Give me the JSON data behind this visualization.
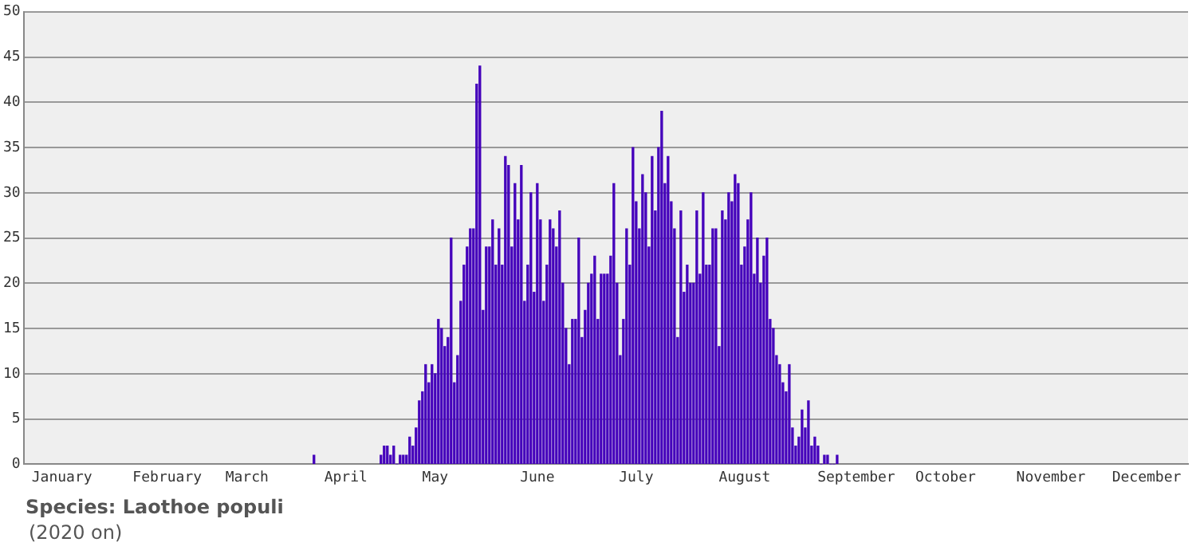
{
  "chart_data": {
    "type": "bar",
    "title": "Species: Laothoe populi",
    "subtitle": "(2020 on)",
    "x": [
      "2020-04-01",
      "2020-04-22",
      "2020-04-23",
      "2020-04-24",
      "2020-04-25",
      "2020-04-26",
      "2020-04-27",
      "2020-04-28",
      "2020-04-29",
      "2020-04-30",
      "2020-05-01",
      "2020-05-02",
      "2020-05-03",
      "2020-05-04",
      "2020-05-05",
      "2020-05-06",
      "2020-05-07",
      "2020-05-08",
      "2020-05-09",
      "2020-05-10",
      "2020-05-11",
      "2020-05-12",
      "2020-05-13",
      "2020-05-14",
      "2020-05-15",
      "2020-05-16",
      "2020-05-17",
      "2020-05-18",
      "2020-05-19",
      "2020-05-20",
      "2020-05-21",
      "2020-05-22",
      "2020-05-23",
      "2020-05-24",
      "2020-05-25",
      "2020-05-26",
      "2020-05-27",
      "2020-05-28",
      "2020-05-29",
      "2020-05-30",
      "2020-05-31",
      "2020-06-01",
      "2020-06-02",
      "2020-06-03",
      "2020-06-04",
      "2020-06-05",
      "2020-06-06",
      "2020-06-07",
      "2020-06-08",
      "2020-06-09",
      "2020-06-10",
      "2020-06-11",
      "2020-06-12",
      "2020-06-13",
      "2020-06-14",
      "2020-06-15",
      "2020-06-16",
      "2020-06-17",
      "2020-06-18",
      "2020-06-19",
      "2020-06-20",
      "2020-06-21",
      "2020-06-22",
      "2020-06-23",
      "2020-06-24",
      "2020-06-25",
      "2020-06-26",
      "2020-06-27",
      "2020-06-28",
      "2020-06-29",
      "2020-06-30",
      "2020-07-01",
      "2020-07-02",
      "2020-07-03",
      "2020-07-04",
      "2020-07-05",
      "2020-07-06",
      "2020-07-07",
      "2020-07-08",
      "2020-07-09",
      "2020-07-10",
      "2020-07-11",
      "2020-07-12",
      "2020-07-13",
      "2020-07-14",
      "2020-07-15",
      "2020-07-16",
      "2020-07-17",
      "2020-07-18",
      "2020-07-19",
      "2020-07-20",
      "2020-07-21",
      "2020-07-22",
      "2020-07-23",
      "2020-07-24",
      "2020-07-25",
      "2020-07-26",
      "2020-07-27",
      "2020-07-28",
      "2020-07-29",
      "2020-07-30",
      "2020-07-31",
      "2020-08-01",
      "2020-08-02",
      "2020-08-03",
      "2020-08-04",
      "2020-08-05",
      "2020-08-06",
      "2020-08-07",
      "2020-08-08",
      "2020-08-09",
      "2020-08-10",
      "2020-08-11",
      "2020-08-12",
      "2020-08-13",
      "2020-08-14",
      "2020-08-15",
      "2020-08-16",
      "2020-08-17",
      "2020-08-18",
      "2020-08-19",
      "2020-08-20",
      "2020-08-21",
      "2020-08-22",
      "2020-08-23",
      "2020-08-24",
      "2020-08-25",
      "2020-08-26",
      "2020-08-27",
      "2020-08-28",
      "2020-08-29",
      "2020-08-30",
      "2020-08-31",
      "2020-09-01",
      "2020-09-02",
      "2020-09-03",
      "2020-09-04",
      "2020-09-05",
      "2020-09-06",
      "2020-09-07",
      "2020-09-08",
      "2020-09-09",
      "2020-09-10",
      "2020-09-11",
      "2020-09-12"
    ],
    "values": [
      1,
      1,
      2,
      2,
      1,
      2,
      0,
      1,
      1,
      1,
      3,
      2,
      4,
      7,
      8,
      11,
      9,
      11,
      10,
      16,
      15,
      13,
      14,
      25,
      9,
      12,
      18,
      22,
      24,
      26,
      26,
      42,
      44,
      17,
      24,
      24,
      27,
      22,
      26,
      22,
      34,
      33,
      24,
      31,
      27,
      33,
      18,
      22,
      30,
      19,
      31,
      27,
      18,
      22,
      27,
      26,
      24,
      28,
      20,
      15,
      11,
      16,
      16,
      25,
      14,
      17,
      20,
      21,
      23,
      16,
      21,
      21,
      21,
      23,
      31,
      20,
      12,
      16,
      26,
      22,
      35,
      29,
      26,
      32,
      30,
      24,
      34,
      28,
      35,
      39,
      31,
      34,
      29,
      26,
      14,
      28,
      19,
      22,
      20,
      20,
      28,
      21,
      30,
      22,
      22,
      26,
      26,
      13,
      28,
      27,
      30,
      29,
      32,
      31,
      22,
      24,
      27,
      30,
      21,
      25,
      20,
      23,
      25,
      16,
      15,
      12,
      11,
      9,
      8,
      11,
      4,
      2,
      3,
      6,
      4,
      7,
      2,
      3,
      2,
      0,
      1,
      1,
      0,
      0,
      1
    ],
    "color": "#4400bb",
    "xlim": [
      "2020-01-01",
      "2020-12-31"
    ],
    "xticks": [
      {
        "value": "2020-01-13",
        "label": "January"
      },
      {
        "value": "2020-02-15",
        "label": "February"
      },
      {
        "value": "2020-03-11",
        "label": "March"
      },
      {
        "value": "2020-04-11",
        "label": "April"
      },
      {
        "value": "2020-05-09",
        "label": "May"
      },
      {
        "value": "2020-06-10",
        "label": "June"
      },
      {
        "value": "2020-07-11",
        "label": "July"
      },
      {
        "value": "2020-08-14",
        "label": "August"
      },
      {
        "value": "2020-09-18",
        "label": "September"
      },
      {
        "value": "2020-10-16",
        "label": "October"
      },
      {
        "value": "2020-11-18",
        "label": "November"
      },
      {
        "value": "2020-12-18",
        "label": "December"
      }
    ],
    "ylim": [
      0,
      50
    ],
    "yticks": [
      0,
      5,
      10,
      15,
      20,
      25,
      30,
      35,
      40,
      45,
      50
    ],
    "grid": "y",
    "legend": false
  }
}
